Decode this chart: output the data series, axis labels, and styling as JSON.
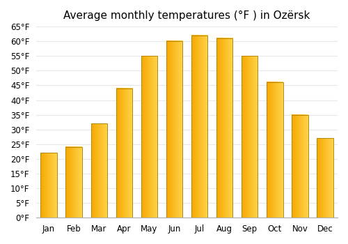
{
  "title": "Average monthly temperatures (°F ) in Ozërsk",
  "months": [
    "Jan",
    "Feb",
    "Mar",
    "Apr",
    "May",
    "Jun",
    "Jul",
    "Aug",
    "Sep",
    "Oct",
    "Nov",
    "Dec"
  ],
  "values": [
    22,
    24,
    32,
    44,
    55,
    60,
    62,
    61,
    55,
    46,
    35,
    27
  ],
  "ylim": [
    0,
    65
  ],
  "yticks": [
    0,
    5,
    10,
    15,
    20,
    25,
    30,
    35,
    40,
    45,
    50,
    55,
    60,
    65
  ],
  "ytick_labels": [
    "0°F",
    "5°F",
    "10°F",
    "15°F",
    "20°F",
    "25°F",
    "30°F",
    "35°F",
    "40°F",
    "45°F",
    "50°F",
    "55°F",
    "60°F",
    "65°F"
  ],
  "bar_color_left": "#F5A800",
  "bar_color_right": "#FFD44A",
  "bar_edge_color": "#B8860B",
  "background_color": "#ffffff",
  "grid_color": "#e8e8e8",
  "title_fontsize": 11,
  "tick_fontsize": 8.5,
  "bar_width": 0.65,
  "gradient_steps": 100
}
